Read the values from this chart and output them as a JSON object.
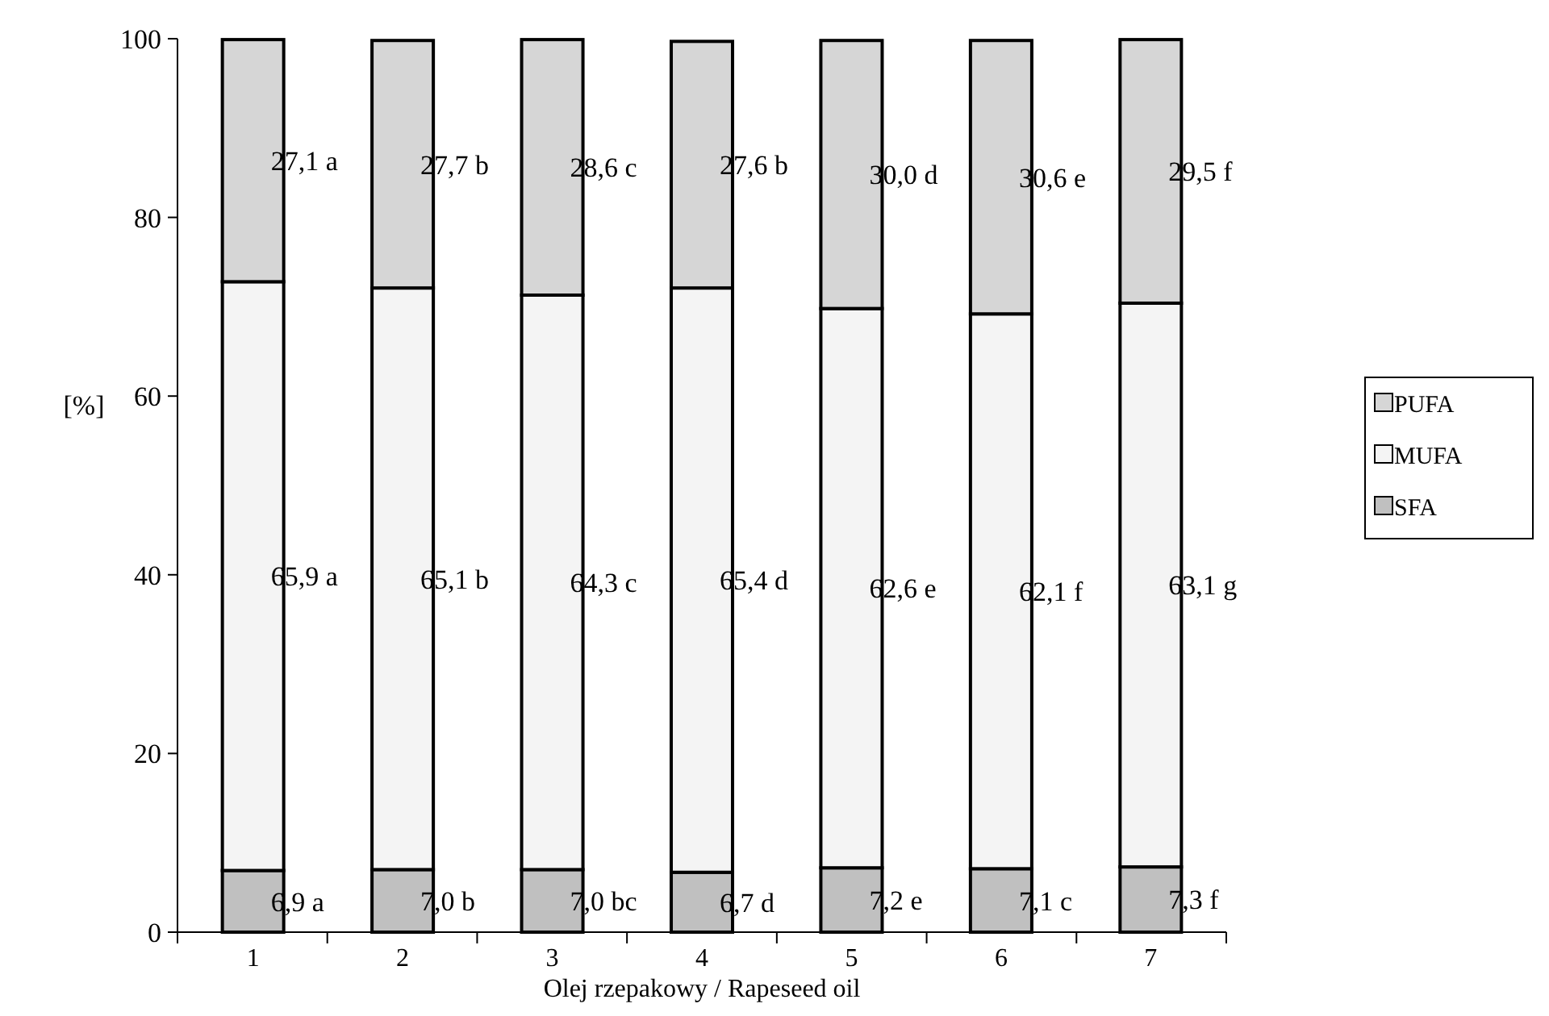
{
  "chart_data": {
    "type": "bar",
    "stacked": true,
    "xlabel": "Olej rzepakowy / Rapeseed oil",
    "ylabel": "[%]",
    "categories": [
      "1",
      "2",
      "3",
      "4",
      "5",
      "6",
      "7"
    ],
    "ylim": [
      0,
      100
    ],
    "yticks": [
      0,
      20,
      40,
      60,
      80,
      100
    ],
    "grid": false,
    "legend": "right",
    "series": [
      {
        "name": "SFA",
        "color": "#c0c0c0",
        "values": [
          6.9,
          7.0,
          7.0,
          6.7,
          7.2,
          7.1,
          7.3
        ],
        "value_labels": [
          "6,9 a",
          "7,0 b",
          "7,0 bc",
          "6,7 d",
          "7,2 e",
          "7,1 c",
          "7,3 f"
        ]
      },
      {
        "name": "MUFA",
        "color": "#f4f4f4",
        "values": [
          65.9,
          65.1,
          64.3,
          65.4,
          62.6,
          62.1,
          63.1
        ],
        "value_labels": [
          "65,9 a",
          "65,1 b",
          "64,3 c",
          "65,4 d",
          "62,6 e",
          "62,1 f",
          "63,1 g"
        ]
      },
      {
        "name": "PUFA",
        "color": "#d6d6d6",
        "values": [
          27.1,
          27.7,
          28.6,
          27.6,
          30.0,
          30.6,
          29.5
        ],
        "value_labels": [
          "27,1 a",
          "27,7 b",
          "28,6 c",
          "27,6 b",
          "30,0 d",
          "30,6 e",
          "29,5 f"
        ]
      }
    ]
  }
}
